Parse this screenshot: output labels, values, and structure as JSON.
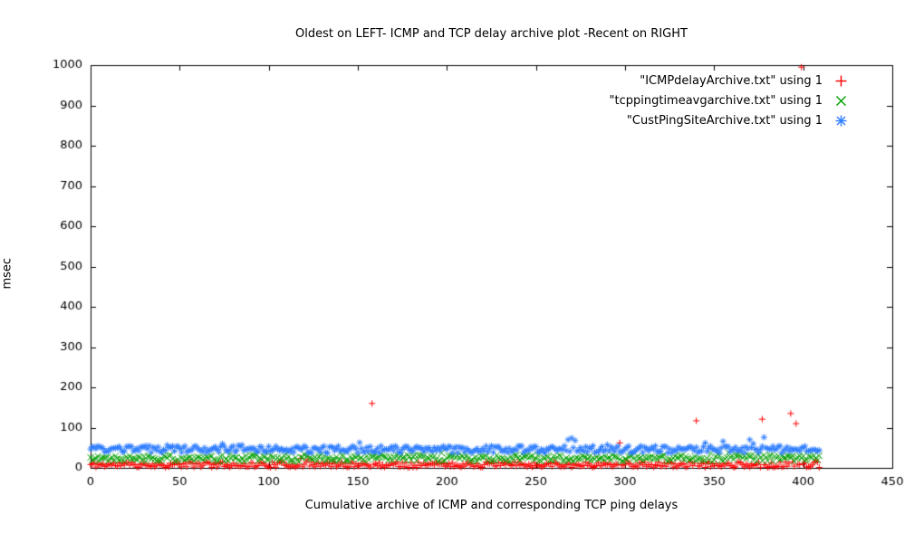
{
  "chart_data": {
    "type": "scatter",
    "title": "Oldest on LEFT- ICMP and TCP delay archive plot -Recent on RIGHT",
    "xlabel": "Cumulative archive of ICMP and corresponding TCP ping delays",
    "ylabel": "msec",
    "xlim": [
      0,
      450
    ],
    "ylim": [
      0,
      1000
    ],
    "xtick": 50,
    "ytick": 100,
    "grid": false,
    "legend_position": "top-right-inside",
    "background": "#ffffff",
    "axis_color": "#000000",
    "series": [
      {
        "label": "\"ICMPdelayArchive.txt\" using 1",
        "marker": "plus",
        "color": "#ff0000",
        "count": 410,
        "base": 8,
        "jitter": 7,
        "seed": 11,
        "spikes": [
          [
            118,
            24
          ],
          [
            122,
            20
          ],
          [
            158,
            160
          ],
          [
            297,
            62
          ],
          [
            340,
            117
          ],
          [
            377,
            121
          ],
          [
            393,
            135
          ],
          [
            396,
            110
          ],
          [
            399,
            995
          ]
        ]
      },
      {
        "label": "\"tcppingtimeavgarchive.txt\" using 1",
        "marker": "cross",
        "color": "#00a000",
        "count": 410,
        "base": 24,
        "jitter": 8,
        "seed": 22,
        "spikes": [
          [
            50,
            48
          ],
          [
            120,
            34
          ],
          [
            348,
            36
          ],
          [
            352,
            34
          ],
          [
            358,
            38
          ],
          [
            362,
            32
          ]
        ]
      },
      {
        "label": "\"CustPingSiteArchive.txt\" using 1",
        "marker": "star",
        "color": "#2f7eff",
        "count": 410,
        "base": 46,
        "jitter": 9,
        "seed": 33,
        "spikes": [
          [
            268,
            70
          ],
          [
            270,
            74
          ],
          [
            272,
            68
          ],
          [
            345,
            62
          ],
          [
            355,
            66
          ],
          [
            370,
            70
          ],
          [
            378,
            76
          ]
        ]
      }
    ]
  }
}
